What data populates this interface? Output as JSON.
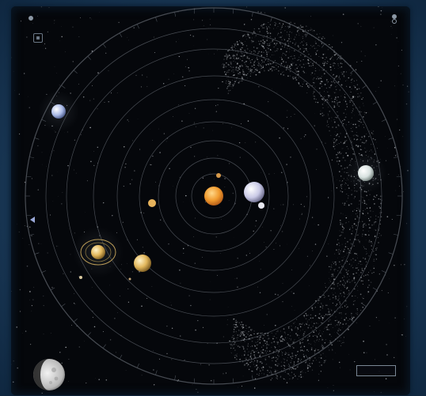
{
  "window": {
    "title": ""
  },
  "controls": {
    "top_left": {
      "speed_label": "",
      "settings": "settings-icon"
    },
    "top_right": {
      "title": "",
      "option_1": "",
      "option_2": ""
    },
    "bottom_right": {
      "primary_button": "",
      "secondary_button": ""
    }
  },
  "orbits": {
    "count": 9
  },
  "planets": [
    {
      "name": "sun",
      "color": "#f0a63a"
    },
    {
      "name": "mercury",
      "color": "#d89a4a"
    },
    {
      "name": "venus",
      "color": "#c9c9e6"
    },
    {
      "name": "earth",
      "color": "#9aa7c2"
    },
    {
      "name": "mars",
      "color": "#e7b35c"
    },
    {
      "name": "jupiter",
      "color": "#e8c98a"
    },
    {
      "name": "saturn",
      "color": "#e2b75c"
    },
    {
      "name": "uranus",
      "color": "#d8e2e0"
    },
    {
      "name": "neptune",
      "color": "#a9b9e6"
    }
  ],
  "icons": {
    "moon": "moon-phase-icon",
    "settings": "settings-icon"
  },
  "colors": {
    "frame": "#1d3a57",
    "space": "#05070b",
    "orbit": "#5d636b"
  }
}
